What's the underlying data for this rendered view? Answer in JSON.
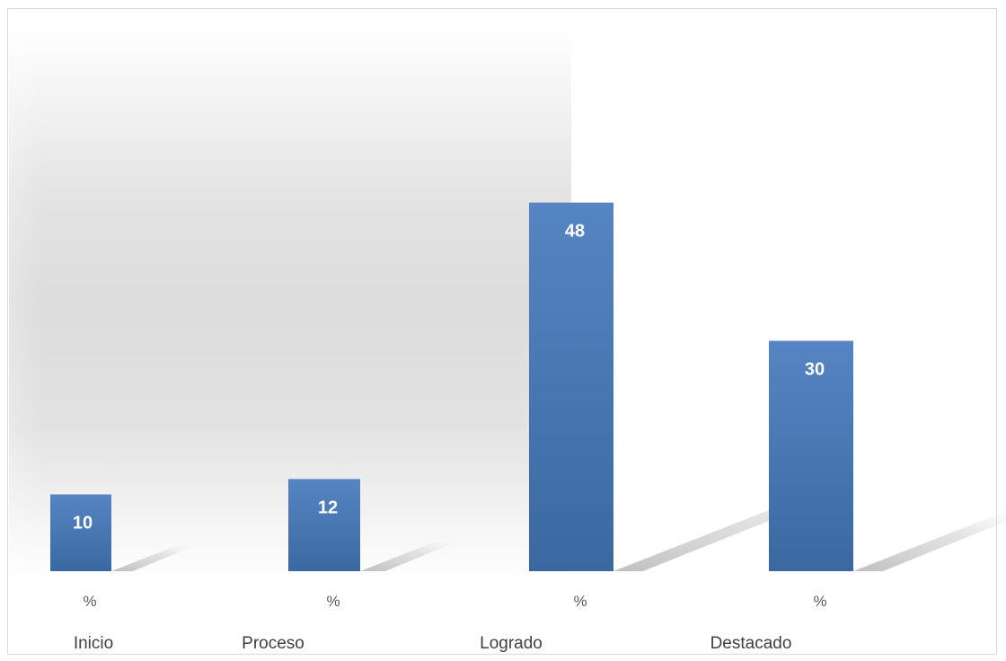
{
  "chart_data": {
    "type": "bar",
    "title": "",
    "xlabel": "",
    "ylabel": "",
    "categories": [
      "Inicio",
      "Proceso",
      "Logrado",
      "Destacado"
    ],
    "values": [
      10,
      12,
      48,
      30
    ],
    "value_labels": [
      "10",
      "12",
      "48",
      "30"
    ],
    "percent_labels": [
      "%",
      "%",
      "%",
      "%"
    ],
    "ylim": [
      0,
      60
    ],
    "grid": false,
    "legend": "none",
    "style": "3d-shadow",
    "bar_color": "#4a7ab5",
    "bar_color_top": "#5585c2",
    "bar_color_bottom": "#3b68a0",
    "label_color": "#ffffff"
  }
}
